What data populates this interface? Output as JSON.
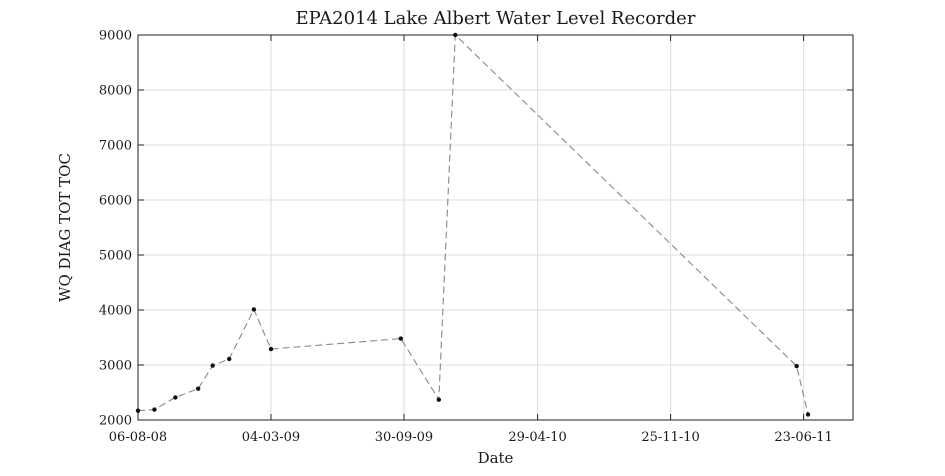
{
  "chart_data": {
    "type": "line",
    "title": "EPA2014 Lake Albert Water Level Recorder",
    "xlabel": "Date",
    "ylabel": "WQ DIAG TOT TOC",
    "x_type": "date",
    "xlim": [
      "2008-08-06",
      "2011-09-09"
    ],
    "ylim": [
      2000,
      9000
    ],
    "x_ticks": [
      {
        "date": "2008-08-06",
        "label": "06-08-08"
      },
      {
        "date": "2009-03-04",
        "label": "04-03-09"
      },
      {
        "date": "2009-09-30",
        "label": "30-09-09"
      },
      {
        "date": "2010-04-29",
        "label": "29-04-10"
      },
      {
        "date": "2010-11-25",
        "label": "25-11-10"
      },
      {
        "date": "2011-06-23",
        "label": "23-06-11"
      }
    ],
    "y_ticks": [
      2000,
      3000,
      4000,
      5000,
      6000,
      7000,
      8000,
      9000
    ],
    "grid": true,
    "line_style": "dashed",
    "line_color": "#888888",
    "marker_color": "#111111",
    "series": [
      {
        "points": [
          {
            "x": "2008-08-06",
            "y": 2170
          },
          {
            "x": "2008-09-01",
            "y": 2190
          },
          {
            "x": "2008-10-04",
            "y": 2410
          },
          {
            "x": "2008-11-09",
            "y": 2570
          },
          {
            "x": "2008-12-02",
            "y": 2990
          },
          {
            "x": "2008-12-28",
            "y": 3110
          },
          {
            "x": "2009-02-05",
            "y": 4010
          },
          {
            "x": "2009-03-04",
            "y": 3290
          },
          {
            "x": "2009-09-25",
            "y": 3480
          },
          {
            "x": "2009-11-24",
            "y": 2370
          },
          {
            "x": "2009-12-20",
            "y": 9000
          },
          {
            "x": "2011-06-12",
            "y": 2980
          },
          {
            "x": "2011-06-30",
            "y": 2100
          }
        ]
      }
    ]
  }
}
